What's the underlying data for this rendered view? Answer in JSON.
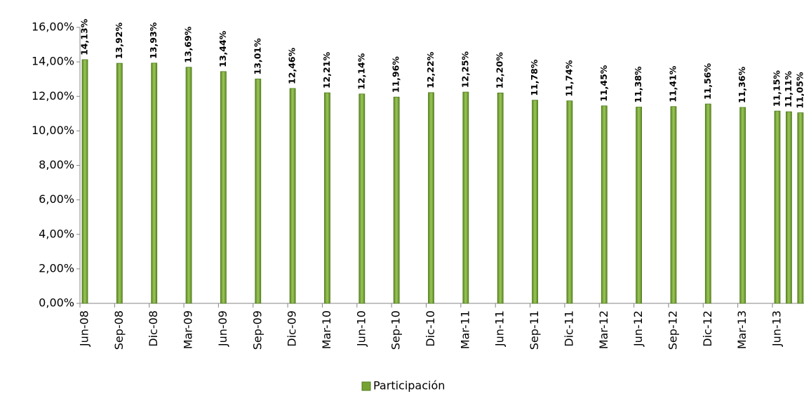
{
  "chart_data": {
    "type": "bar",
    "categories": [
      "Jun-08",
      "Sep-08",
      "Dic-08",
      "Mar-09",
      "Jun-09",
      "Sep-09",
      "Dic-09",
      "Mar-10",
      "Jun-10",
      "Sep-10",
      "Dic-10",
      "Mar-11",
      "Jun-11",
      "Sep-11",
      "Dic-11",
      "Mar-12",
      "Jun-12",
      "Sep-12",
      "Dic-12",
      "Mar-13",
      "Jun-13",
      null,
      null
    ],
    "series": [
      {
        "name": "Participación",
        "color": "#76a232",
        "values": [
          14.13,
          13.92,
          13.93,
          13.69,
          13.44,
          13.01,
          12.46,
          12.21,
          12.14,
          11.96,
          12.22,
          12.25,
          12.2,
          11.78,
          11.74,
          11.45,
          11.38,
          11.41,
          11.56,
          11.36,
          11.15,
          11.11,
          11.05
        ],
        "value_labels": [
          "14,13%",
          "13,92%",
          "13,93%",
          "13,69%",
          "13,44%",
          "13,01%",
          "12,46%",
          "12,21%",
          "12,14%",
          "11,96%",
          "12,22%",
          "12,25%",
          "12,20%",
          "11,78%",
          "11,74%",
          "11,45%",
          "11,38%",
          "11,41%",
          "11,56%",
          "11,36%",
          "11,15%",
          "11,11%",
          "11,05%"
        ]
      }
    ],
    "ylim": [
      0,
      16
    ],
    "yticks": [
      {
        "value": 0,
        "label": "0,00%"
      },
      {
        "value": 2,
        "label": "2,00%"
      },
      {
        "value": 4,
        "label": "4,00%"
      },
      {
        "value": 6,
        "label": "6,00%"
      },
      {
        "value": 8,
        "label": "8,00%"
      },
      {
        "value": 10,
        "label": "10,00%"
      },
      {
        "value": 12,
        "label": "12,00%"
      },
      {
        "value": 14,
        "label": "14,00%"
      },
      {
        "value": 16,
        "label": "16,00%"
      }
    ],
    "grid": false,
    "legend": "bottom"
  }
}
